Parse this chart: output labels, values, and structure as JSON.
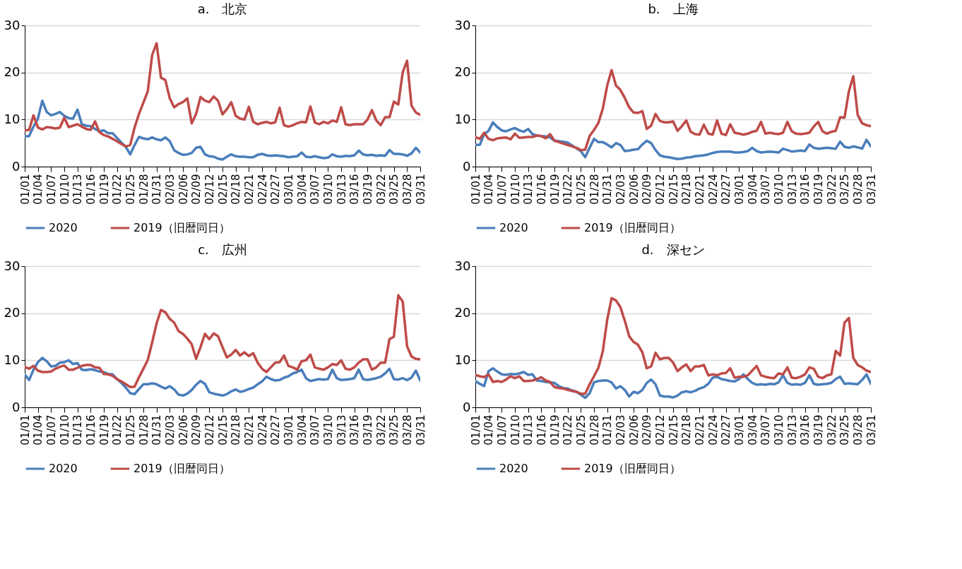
{
  "chart_data": [
    {
      "type": "line",
      "title": "a.　北京",
      "categories": [
        "01/01",
        null,
        null,
        "01/04",
        null,
        null,
        "01/07",
        null,
        null,
        "01/10",
        null,
        null,
        "01/13",
        null,
        null,
        "01/16",
        null,
        null,
        "01/19",
        null,
        null,
        "01/22",
        null,
        null,
        "01/25",
        null,
        null,
        "01/28",
        null,
        null,
        "01/31",
        null,
        null,
        "02/03",
        null,
        null,
        "02/06",
        null,
        null,
        "02/09",
        null,
        null,
        "02/12",
        null,
        null,
        "02/15",
        null,
        null,
        "02/18",
        null,
        null,
        "02/21",
        null,
        null,
        "02/24",
        null,
        null,
        "02/27",
        null,
        null,
        "03/01",
        null,
        null,
        "03/04",
        null,
        null,
        "03/07",
        null,
        null,
        "03/10",
        null,
        null,
        "03/13",
        null,
        null,
        "03/16",
        null,
        null,
        "03/19",
        null,
        null,
        "03/22",
        null,
        null,
        "03/25",
        null,
        null,
        "03/28",
        null,
        null,
        "03/31"
      ],
      "ylim": [
        0,
        30
      ],
      "yticks": [
        0,
        10,
        20,
        30
      ],
      "grid": "y",
      "legend": "bottom",
      "line_style": "solid",
      "marker": "none",
      "series": [
        {
          "name": "2020",
          "color": "#4a7ebb",
          "values": [
            6.4,
            6.5,
            8.5,
            10.2,
            14,
            11.6,
            10.9,
            11.2,
            11.6,
            10.8,
            10.3,
            10.2,
            12.1,
            9,
            8.7,
            8.6,
            8,
            7.5,
            7.7,
            7.1,
            7.1,
            6.1,
            5.1,
            4.2,
            2.6,
            4.6,
            6.3,
            6,
            5.8,
            6.2,
            5.8,
            5.6,
            6.2,
            5.4,
            3.5,
            2.9,
            2.5,
            2.6,
            2.9,
            4,
            4.2,
            2.6,
            2.2,
            2.1,
            1.7,
            1.5,
            2.1,
            2.6,
            2.2,
            2.1,
            2.1,
            2,
            2,
            2.5,
            2.7,
            2.4,
            2.3,
            2.4,
            2.3,
            2.2,
            2,
            2.1,
            2.2,
            3,
            2.1,
            2,
            2.2,
            2,
            1.8,
            1.9,
            2.6,
            2.2,
            2.1,
            2.3,
            2.2,
            2.4,
            3.4,
            2.6,
            2.4,
            2.5,
            2.3,
            2.4,
            2.3,
            3.5,
            2.7,
            2.7,
            2.6,
            2.3,
            2.8,
            4,
            3
          ]
        },
        {
          "name": "2019（旧暦同日）",
          "color": "#be4b48",
          "values": [
            7.7,
            7.8,
            10.9,
            8.3,
            7.9,
            8.4,
            8.3,
            8.1,
            8.3,
            10.4,
            8.4,
            8.7,
            9,
            8.5,
            8,
            7.8,
            9.6,
            7.3,
            6.7,
            6.4,
            5.9,
            5.4,
            4.8,
            4.3,
            4.6,
            8.3,
            11.2,
            13.6,
            16,
            23.7,
            26.2,
            18.9,
            18.4,
            14.5,
            12.6,
            13.3,
            13.7,
            14.5,
            9.2,
            11.2,
            14.8,
            14,
            13.7,
            14.9,
            14,
            11.1,
            12.2,
            13.7,
            10.8,
            10.2,
            10,
            12.7,
            9.5,
            9,
            9.3,
            9.5,
            9.2,
            9.4,
            12.5,
            8.8,
            8.5,
            8.8,
            9.2,
            9.5,
            9.4,
            12.8,
            9.4,
            9,
            9.5,
            9.2,
            9.8,
            9.5,
            12.6,
            9,
            8.8,
            9,
            9,
            9,
            10,
            12,
            9.8,
            8.8,
            10.5,
            10.5,
            13.8,
            13.2,
            20,
            22.5,
            13,
            11.5,
            11
          ]
        }
      ]
    },
    {
      "type": "line",
      "title": "b.　上海",
      "categories": [
        "01/01",
        null,
        null,
        "01/04",
        null,
        null,
        "01/07",
        null,
        null,
        "01/10",
        null,
        null,
        "01/13",
        null,
        null,
        "01/16",
        null,
        null,
        "01/19",
        null,
        null,
        "01/22",
        null,
        null,
        "01/25",
        null,
        null,
        "01/28",
        null,
        null,
        "01/31",
        null,
        null,
        "02/03",
        null,
        null,
        "02/06",
        null,
        null,
        "02/09",
        null,
        null,
        "02/12",
        null,
        null,
        "02/15",
        null,
        null,
        "02/18",
        null,
        null,
        "02/21",
        null,
        null,
        "02/24",
        null,
        null,
        "02/27",
        null,
        null,
        "03/01",
        null,
        null,
        "03/04",
        null,
        null,
        "03/07",
        null,
        null,
        "03/10",
        null,
        null,
        "03/13",
        null,
        null,
        "03/16",
        null,
        null,
        "03/19",
        null,
        null,
        "03/22",
        null,
        null,
        "03/25",
        null,
        null,
        "03/28",
        null,
        null,
        "03/31"
      ],
      "ylim": [
        0,
        30
      ],
      "yticks": [
        0,
        10,
        20,
        30
      ],
      "grid": "y",
      "legend": "bottom",
      "line_style": "solid",
      "marker": "none",
      "series": [
        {
          "name": "2020",
          "color": "#4a7ebb",
          "values": [
            4.6,
            4.6,
            6.9,
            7.6,
            9.4,
            8.4,
            7.7,
            7.5,
            7.9,
            8.2,
            7.7,
            7.4,
            8,
            6.9,
            6.6,
            6.5,
            6.4,
            6.2,
            5.5,
            5.4,
            5.3,
            5.1,
            4.5,
            3.9,
            3.3,
            2,
            4,
            5.9,
            5.2,
            5.2,
            4.7,
            4.1,
            5,
            4.6,
            3.3,
            3.4,
            3.6,
            3.7,
            4.7,
            5.5,
            5,
            3.5,
            2.4,
            2.1,
            2,
            1.8,
            1.6,
            1.7,
            1.9,
            2,
            2.2,
            2.3,
            2.4,
            2.6,
            2.9,
            3.1,
            3.2,
            3.2,
            3.2,
            3,
            3,
            3.1,
            3.3,
            4,
            3.3,
            3,
            3.1,
            3.2,
            3.1,
            3,
            3.8,
            3.5,
            3.2,
            3.3,
            3.4,
            3.3,
            4.7,
            4,
            3.8,
            3.9,
            4,
            3.9,
            3.8,
            5.3,
            4.2,
            4,
            4.3,
            4.1,
            3.8,
            5.7,
            4.3
          ]
        },
        {
          "name": "2019（旧暦同日）",
          "color": "#be4b48",
          "values": [
            6.3,
            5.9,
            7.2,
            5.9,
            5.6,
            6,
            6.1,
            6.2,
            5.8,
            7,
            6.1,
            6.2,
            6.3,
            6.3,
            6.6,
            6.5,
            6,
            6.9,
            5.5,
            5.2,
            4.9,
            4.6,
            4.3,
            4,
            3.5,
            3.6,
            6.5,
            7.8,
            9.3,
            12.3,
            17.2,
            20.5,
            17.2,
            16.3,
            14.6,
            12.6,
            11.5,
            11.4,
            11.8,
            8,
            8.7,
            11.2,
            9.7,
            9.4,
            9.4,
            9.6,
            7.6,
            8.6,
            9.8,
            7.4,
            6.9,
            6.8,
            8.9,
            7,
            6.8,
            9.8,
            7,
            6.7,
            9,
            7.2,
            7,
            6.8,
            7,
            7.4,
            7.6,
            9.5,
            7,
            7.2,
            7,
            6.9,
            7.2,
            9.5,
            7.5,
            7,
            6.9,
            7,
            7.2,
            8.5,
            9.5,
            7.5,
            7,
            7.4,
            7.6,
            10.5,
            10.4,
            16,
            19.2,
            11,
            9.2,
            8.8,
            8.6
          ]
        }
      ]
    },
    {
      "type": "line",
      "title": "c.　広州",
      "categories": [
        "01/01",
        null,
        null,
        "01/04",
        null,
        null,
        "01/07",
        null,
        null,
        "01/10",
        null,
        null,
        "01/13",
        null,
        null,
        "01/16",
        null,
        null,
        "01/19",
        null,
        null,
        "01/22",
        null,
        null,
        "01/25",
        null,
        null,
        "01/28",
        null,
        null,
        "01/31",
        null,
        null,
        "02/03",
        null,
        null,
        "02/06",
        null,
        null,
        "02/09",
        null,
        null,
        "02/12",
        null,
        null,
        "02/15",
        null,
        null,
        "02/18",
        null,
        null,
        "02/21",
        null,
        null,
        "02/24",
        null,
        null,
        "02/27",
        null,
        null,
        "03/01",
        null,
        null,
        "03/04",
        null,
        null,
        "03/07",
        null,
        null,
        "03/10",
        null,
        null,
        "03/13",
        null,
        null,
        "03/16",
        null,
        null,
        "03/19",
        null,
        null,
        "03/22",
        null,
        null,
        "03/25",
        null,
        null,
        "03/28",
        null,
        null,
        "03/31"
      ],
      "ylim": [
        0,
        30
      ],
      "yticks": [
        0,
        10,
        20,
        30
      ],
      "grid": "y",
      "legend": "bottom",
      "line_style": "solid",
      "marker": "none",
      "series": [
        {
          "name": "2020",
          "color": "#4a7ebb",
          "values": [
            7,
            5.8,
            8,
            9.6,
            10.5,
            9.8,
            8.7,
            8.8,
            9.5,
            9.6,
            10,
            9.2,
            9.4,
            8,
            7.9,
            8.1,
            7.9,
            7.6,
            7.5,
            7.1,
            7,
            6,
            5.2,
            4.2,
            3,
            2.8,
            3.9,
            4.9,
            4.9,
            5.1,
            4.9,
            4.4,
            4,
            4.5,
            3.8,
            2.7,
            2.5,
            2.9,
            3.7,
            4.8,
            5.6,
            5,
            3.2,
            2.9,
            2.7,
            2.5,
            2.8,
            3.4,
            3.8,
            3.3,
            3.5,
            3.9,
            4.2,
            4.9,
            5.5,
            6.5,
            6,
            5.7,
            5.8,
            6.3,
            6.6,
            7.2,
            7.5,
            8,
            6.2,
            5.6,
            5.8,
            6,
            5.9,
            6,
            8,
            6.2,
            5.8,
            5.9,
            6,
            6.2,
            8,
            6,
            5.8,
            6,
            6.2,
            6.5,
            7.2,
            8.2,
            6,
            5.9,
            6.2,
            5.8,
            6.3,
            7.8,
            5.7
          ]
        },
        {
          "name": "2019（旧暦同日）",
          "color": "#be4b48",
          "values": [
            8.6,
            8.2,
            8.8,
            7.8,
            7.5,
            7.5,
            7.6,
            8.2,
            8.6,
            8.9,
            8,
            8,
            8.4,
            8.8,
            9,
            9,
            8.5,
            8.4,
            7.1,
            7,
            6.7,
            6,
            5.5,
            4.9,
            4.3,
            4.4,
            6.4,
            8.2,
            10.1,
            13.8,
            17.8,
            20.7,
            20.2,
            18.8,
            18,
            16.2,
            15.6,
            14.6,
            13.4,
            10.3,
            12.8,
            15.6,
            14.5,
            15.7,
            15.1,
            12.8,
            10.6,
            11.2,
            12.2,
            11,
            11.7,
            10.9,
            11.5,
            9.5,
            8.2,
            7.5,
            8.5,
            9.5,
            9.6,
            11,
            8.8,
            8.5,
            8,
            9.8,
            10,
            11.2,
            8.5,
            8.2,
            8,
            8.5,
            9.2,
            9,
            10,
            8.2,
            8,
            8.5,
            9.5,
            10.2,
            10.2,
            8,
            8.5,
            9.5,
            9.5,
            14.5,
            15,
            23.8,
            22.5,
            13,
            10.8,
            10.3,
            10.2
          ]
        }
      ]
    },
    {
      "type": "line",
      "title": "d.　深セン",
      "categories": [
        "01/01",
        null,
        null,
        "01/04",
        null,
        null,
        "01/07",
        null,
        null,
        "01/10",
        null,
        null,
        "01/13",
        null,
        null,
        "01/16",
        null,
        null,
        "01/19",
        null,
        null,
        "01/22",
        null,
        null,
        "01/25",
        null,
        null,
        "01/28",
        null,
        null,
        "01/31",
        null,
        null,
        "02/03",
        null,
        null,
        "02/06",
        null,
        null,
        "02/09",
        null,
        null,
        "02/12",
        null,
        null,
        "02/15",
        null,
        null,
        "02/18",
        null,
        null,
        "02/21",
        null,
        null,
        "02/24",
        null,
        null,
        "02/27",
        null,
        null,
        "03/01",
        null,
        null,
        "03/04",
        null,
        null,
        "03/07",
        null,
        null,
        "03/10",
        null,
        null,
        "03/13",
        null,
        null,
        "03/16",
        null,
        null,
        "03/19",
        null,
        null,
        "03/22",
        null,
        null,
        "03/25",
        null,
        null,
        "03/28",
        null,
        null,
        "03/31"
      ],
      "ylim": [
        0,
        30
      ],
      "yticks": [
        0,
        10,
        20,
        30
      ],
      "grid": "y",
      "legend": "bottom",
      "line_style": "solid",
      "marker": "none",
      "series": [
        {
          "name": "2020",
          "color": "#4a7ebb",
          "values": [
            5.6,
            5,
            4.5,
            7.7,
            8.3,
            7.6,
            7,
            6.9,
            7.1,
            7,
            7.2,
            7.5,
            6.9,
            7,
            5.7,
            5.6,
            5.4,
            5.3,
            5.2,
            4.5,
            4.1,
            4,
            3.6,
            3.3,
            2.7,
            2,
            3,
            5.3,
            5.6,
            5.7,
            5.7,
            5.3,
            4,
            4.5,
            3.7,
            2.3,
            3.3,
            3,
            3.7,
            5.2,
            5.9,
            4.9,
            2.5,
            2.3,
            2.3,
            2.1,
            2.5,
            3.2,
            3.4,
            3.2,
            3.5,
            4,
            4.3,
            5,
            6.3,
            6.5,
            6,
            5.8,
            5.6,
            5.5,
            6,
            7,
            6,
            5.2,
            4.8,
            4.9,
            4.8,
            5,
            4.9,
            5.3,
            6.8,
            5.2,
            4.8,
            4.9,
            4.8,
            5.2,
            6.8,
            5,
            4.8,
            4.9,
            5,
            5.2,
            6,
            6.5,
            5,
            5.1,
            5,
            4.9,
            5.8,
            7,
            5
          ]
        },
        {
          "name": "2019（旧暦同日）",
          "color": "#be4b48",
          "values": [
            6.9,
            6.6,
            6.4,
            7,
            5.4,
            5.6,
            5.4,
            5.9,
            6.6,
            6.2,
            6.6,
            5.6,
            5.6,
            5.7,
            6,
            6.4,
            5.7,
            5.4,
            4.3,
            4.1,
            4,
            3.7,
            3.5,
            3.3,
            2.9,
            2.9,
            4.9,
            6.6,
            8.4,
            11.9,
            18.6,
            23.2,
            22.7,
            21.3,
            18.4,
            15.1,
            13.9,
            13.3,
            11.7,
            8.3,
            8.7,
            11.6,
            10.2,
            10.5,
            10.5,
            9.5,
            7.7,
            8.5,
            9.1,
            7.7,
            8.7,
            8.7,
            9,
            6.8,
            7,
            6.8,
            7.2,
            7.3,
            8.3,
            6.3,
            6.5,
            6.5,
            6.8,
            7.8,
            8.8,
            6.8,
            6.5,
            6.3,
            6.2,
            7.2,
            7,
            8.5,
            6.3,
            6.2,
            6.5,
            7,
            8.5,
            8.2,
            6.5,
            6.2,
            6.8,
            7,
            12,
            11,
            18,
            19,
            10.5,
            9,
            8.5,
            7.8,
            7.5
          ]
        }
      ]
    }
  ]
}
